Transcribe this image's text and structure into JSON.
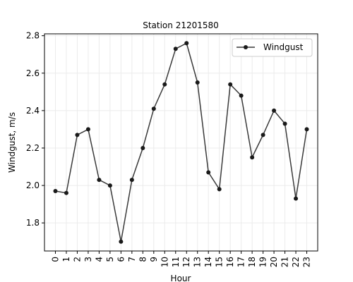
{
  "chart_data": {
    "type": "line",
    "title": "Station 21201580",
    "xlabel": "Hour",
    "ylabel": "Windgust, m/s",
    "x": [
      0,
      1,
      2,
      3,
      4,
      5,
      6,
      7,
      8,
      9,
      10,
      11,
      12,
      13,
      14,
      15,
      16,
      17,
      18,
      19,
      20,
      21,
      22,
      23
    ],
    "x_tick_labels": [
      "0",
      "1",
      "2",
      "3",
      "4",
      "5",
      "6",
      "7",
      "8",
      "9",
      "10",
      "11",
      "12",
      "13",
      "14",
      "15",
      "16",
      "17",
      "18",
      "19",
      "20",
      "21",
      "22",
      "23"
    ],
    "series": [
      {
        "name": "Windgust",
        "color": "#3a3a3a",
        "values": [
          1.97,
          1.96,
          2.27,
          2.3,
          2.03,
          2.0,
          1.7,
          2.03,
          2.2,
          2.41,
          2.54,
          2.73,
          2.76,
          2.55,
          2.07,
          1.98,
          2.54,
          2.48,
          2.15,
          2.27,
          2.4,
          2.33,
          1.93,
          2.3
        ]
      }
    ],
    "xlim": [
      -1,
      24
    ],
    "ylim": [
      1.65,
      2.81
    ],
    "y_ticks": [
      1.8,
      2.0,
      2.2,
      2.4,
      2.6,
      2.8
    ],
    "y_tick_labels": [
      "1.8",
      "2.0",
      "2.2",
      "2.4",
      "2.6",
      "2.8"
    ],
    "grid": true,
    "legend_position": "top-right"
  }
}
